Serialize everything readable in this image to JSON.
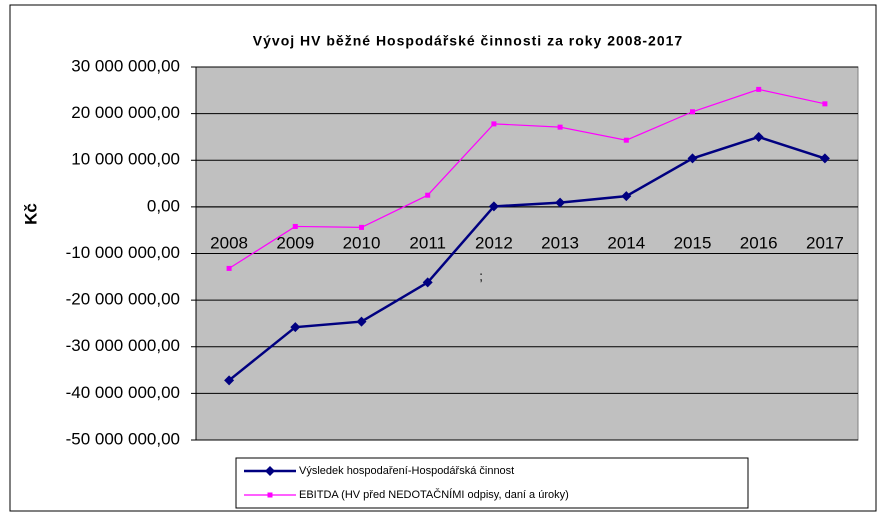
{
  "chart_data": {
    "type": "line",
    "title": "Vývoj HV běžné Hospodářské činnosti za roky 2008-2017",
    "y_label": "Kč",
    "annotation": ";",
    "categories": [
      "2008",
      "2009",
      "2010",
      "2011",
      "2012",
      "2013",
      "2014",
      "2015",
      "2016",
      "2017"
    ],
    "series": [
      {
        "name": "Výsledek hospodaření-Hospodářská činnost",
        "color": "#000080",
        "marker": "diamond",
        "values": [
          -37200000,
          -25800000,
          -24600000,
          -16200000,
          100000,
          900000,
          2300000,
          10400000,
          15000000,
          10400000
        ]
      },
      {
        "name": "EBITDA (HV před NEDOTAČNÍMI odpisy, daní a úroky)",
        "color": "#ff00ff",
        "marker": "square",
        "values": [
          -13200000,
          -4200000,
          -4400000,
          2500000,
          17800000,
          17100000,
          14300000,
          20400000,
          25200000,
          22100000
        ]
      }
    ],
    "ylim": [
      -50000000,
      30000000
    ],
    "yticks": [
      {
        "value": -50000000,
        "label": "-50 000 000,00"
      },
      {
        "value": -40000000,
        "label": "-40 000 000,00"
      },
      {
        "value": -30000000,
        "label": "-30 000 000,00"
      },
      {
        "value": -20000000,
        "label": "-20 000 000,00"
      },
      {
        "value": -10000000,
        "label": "-10 000 000,00"
      },
      {
        "value": 0,
        "label": "0,00"
      },
      {
        "value": 10000000,
        "label": "10 000 000,00"
      },
      {
        "value": 20000000,
        "label": "20 000 000,00"
      },
      {
        "value": 30000000,
        "label": "30 000 000,00"
      }
    ],
    "grid": true,
    "plot_background": "#c0c0c0",
    "legend": "bottom"
  }
}
